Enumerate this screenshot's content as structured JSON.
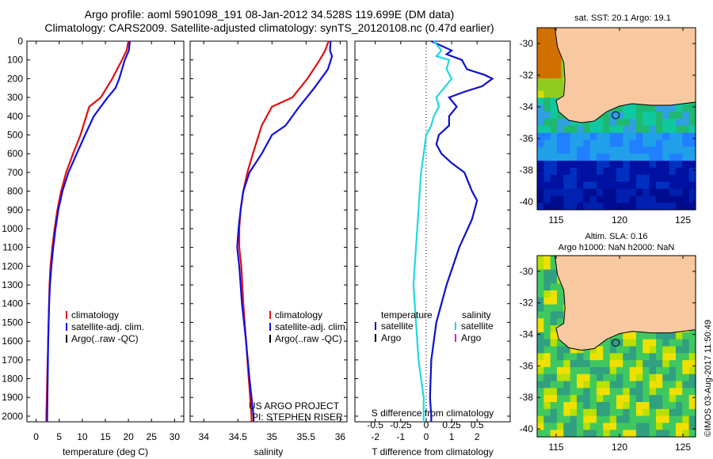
{
  "header": {
    "title1": "Argo profile: aoml 5901098_191 08-Jan-2012 34.528S 119.699E (DM data)",
    "title2": "Climatology: CARS2009. Satellite-adjusted climatology: synTS_20120108.nc (0.47d earlier)"
  },
  "chart_data": [
    {
      "type": "line",
      "id": "temperature",
      "xlabel": "temperature (deg C)",
      "xlim": [
        -2,
        32
      ],
      "xticks": [
        0,
        5,
        10,
        15,
        20,
        25,
        30
      ],
      "ylim": [
        0,
        2030
      ],
      "yticks": [
        0,
        100,
        200,
        300,
        400,
        500,
        600,
        700,
        800,
        900,
        1000,
        1100,
        1200,
        1300,
        1400,
        1500,
        1600,
        1700,
        1800,
        1900,
        2000
      ],
      "legend": [
        "climatology",
        "satellite-adj. clim.",
        "Argo(..raw -QC)"
      ],
      "series": [
        {
          "name": "climatology",
          "color": "#e01010",
          "points": [
            [
              20.0,
              0
            ],
            [
              19.6,
              50
            ],
            [
              18.6,
              100
            ],
            [
              16.5,
              200
            ],
            [
              14.0,
              300
            ],
            [
              11.5,
              350
            ],
            [
              9.6,
              500
            ],
            [
              8.0,
              600
            ],
            [
              6.5,
              700
            ],
            [
              5.4,
              800
            ],
            [
              4.6,
              900
            ],
            [
              4.0,
              1000
            ],
            [
              3.5,
              1100
            ],
            [
              3.1,
              1200
            ],
            [
              2.9,
              1300
            ],
            [
              2.8,
              1400
            ],
            [
              2.6,
              1600
            ],
            [
              2.4,
              1800
            ],
            [
              2.2,
              2000
            ],
            [
              2.2,
              2030
            ]
          ]
        },
        {
          "name": "satellite-adj. clim.",
          "color": "#1010e0",
          "points": [
            [
              20.3,
              0
            ],
            [
              20.1,
              50
            ],
            [
              19.2,
              100
            ],
            [
              18.0,
              200
            ],
            [
              17.2,
              250
            ],
            [
              15.5,
              300
            ],
            [
              12.5,
              400
            ],
            [
              10.6,
              500
            ],
            [
              8.8,
              600
            ],
            [
              7.0,
              700
            ],
            [
              5.7,
              800
            ],
            [
              4.8,
              900
            ],
            [
              4.2,
              1000
            ],
            [
              3.7,
              1100
            ],
            [
              3.3,
              1200
            ],
            [
              3.0,
              1300
            ],
            [
              2.8,
              1400
            ],
            [
              2.6,
              1600
            ],
            [
              2.5,
              1800
            ],
            [
              2.4,
              2000
            ],
            [
              2.4,
              2030
            ]
          ]
        }
      ]
    },
    {
      "type": "line",
      "id": "salinity",
      "xlabel": "salinity",
      "xlim": [
        33.8,
        36.1
      ],
      "xticks": [
        34,
        34.5,
        35,
        35.5,
        36
      ],
      "ylim": [
        0,
        2030
      ],
      "legend": [
        "climatology",
        "satellite-adj. clim.",
        "Argo(..raw -QC)"
      ],
      "annotations": [
        "US ARGO PROJECT",
        "PI: STEPHEN RISER"
      ],
      "series": [
        {
          "name": "climatology",
          "color": "#e01010",
          "points": [
            [
              35.83,
              0
            ],
            [
              35.78,
              50
            ],
            [
              35.7,
              100
            ],
            [
              35.52,
              200
            ],
            [
              35.3,
              300
            ],
            [
              35.0,
              350
            ],
            [
              34.85,
              450
            ],
            [
              34.72,
              600
            ],
            [
              34.64,
              700
            ],
            [
              34.58,
              800
            ],
            [
              34.54,
              900
            ],
            [
              34.52,
              1000
            ],
            [
              34.52,
              1100
            ],
            [
              34.55,
              1200
            ],
            [
              34.58,
              1400
            ],
            [
              34.62,
              1600
            ],
            [
              34.66,
              1800
            ],
            [
              34.7,
              2000
            ],
            [
              34.7,
              2030
            ]
          ]
        },
        {
          "name": "satellite-adj. clim.",
          "color": "#1010e0",
          "points": [
            [
              35.86,
              0
            ],
            [
              35.85,
              50
            ],
            [
              35.88,
              80
            ],
            [
              35.82,
              150
            ],
            [
              35.62,
              250
            ],
            [
              35.4,
              350
            ],
            [
              35.2,
              450
            ],
            [
              35.0,
              500
            ],
            [
              34.85,
              600
            ],
            [
              34.67,
              700
            ],
            [
              34.58,
              800
            ],
            [
              34.54,
              900
            ],
            [
              34.51,
              1000
            ],
            [
              34.49,
              1100
            ],
            [
              34.52,
              1200
            ],
            [
              34.56,
              1400
            ],
            [
              34.62,
              1600
            ],
            [
              34.67,
              1800
            ],
            [
              34.73,
              2000
            ],
            [
              34.73,
              2030
            ]
          ]
        }
      ]
    },
    {
      "type": "line",
      "id": "differences",
      "xlabel_top": "S difference from climatology",
      "xlabel": "T difference from climatology",
      "xlim": [
        -2.8,
        3.3
      ],
      "xticks_bottom": [
        -2,
        -1,
        0,
        1,
        2
      ],
      "xticks_top": [
        -0.5,
        -0.25,
        0,
        0.25,
        0.5
      ],
      "ylim": [
        0,
        2030
      ],
      "legend": {
        "temperature": [
          "satellite",
          "Argo"
        ],
        "salinity": [
          "satellite",
          "Argo"
        ]
      },
      "legend_headers": [
        "temperature",
        "salinity"
      ],
      "series": [
        {
          "name": "satellite",
          "quantity": "temperature",
          "color": "#1010c8",
          "points": [
            [
              0.2,
              0
            ],
            [
              1.0,
              50
            ],
            [
              0.8,
              70
            ],
            [
              1.4,
              100
            ],
            [
              1.6,
              150
            ],
            [
              2.3,
              180
            ],
            [
              2.6,
              200
            ],
            [
              2.2,
              240
            ],
            [
              1.5,
              270
            ],
            [
              0.9,
              300
            ],
            [
              1.2,
              350
            ],
            [
              0.9,
              400
            ],
            [
              0.9,
              450
            ],
            [
              0.5,
              500
            ],
            [
              0.4,
              550
            ],
            [
              0.6,
              600
            ],
            [
              1.0,
              650
            ],
            [
              1.5,
              700
            ],
            [
              1.8,
              800
            ],
            [
              2.0,
              850
            ],
            [
              1.8,
              950
            ],
            [
              1.3,
              1100
            ],
            [
              0.8,
              1300
            ],
            [
              0.4,
              1500
            ],
            [
              0.2,
              1700
            ],
            [
              0.15,
              1900
            ],
            [
              0.2,
              2000
            ],
            [
              0.2,
              2030
            ]
          ]
        },
        {
          "name": "satellite",
          "quantity": "salinity",
          "color": "#20d8e0",
          "points": [
            [
              0.3,
              0
            ],
            [
              0.6,
              50
            ],
            [
              0.4,
              80
            ],
            [
              0.9,
              100
            ],
            [
              0.8,
              150
            ],
            [
              1.0,
              200
            ],
            [
              0.7,
              250
            ],
            [
              0.4,
              300
            ],
            [
              0.5,
              350
            ],
            [
              0.3,
              400
            ],
            [
              0.2,
              450
            ],
            [
              0.0,
              500
            ],
            [
              -0.1,
              600
            ],
            [
              -0.2,
              700
            ],
            [
              -0.3,
              900
            ],
            [
              -0.4,
              1100
            ],
            [
              -0.5,
              1300
            ],
            [
              -0.4,
              1500
            ],
            [
              -0.3,
              1700
            ],
            [
              -0.1,
              1900
            ],
            [
              -0.1,
              2030
            ]
          ]
        }
      ]
    },
    {
      "type": "heatmap",
      "id": "sst-map",
      "title": "sat. SST: 20.1 Argo: 19.1",
      "xticks": [
        115,
        120,
        125
      ],
      "yticks": [
        -30,
        -32,
        -34,
        -36,
        -38,
        -40
      ],
      "xlim": [
        113.5,
        126
      ],
      "ylim": [
        -40.5,
        -29
      ],
      "marker": [
        119.7,
        -34.53
      ]
    },
    {
      "type": "heatmap",
      "id": "sla-map",
      "title_line1": "Altim. SLA: 0.16",
      "title_line2": "Argo h1000: NaN h2000: NaN",
      "xticks": [
        115,
        120,
        125
      ],
      "yticks": [
        -30,
        -32,
        -34,
        -36,
        -38,
        -40
      ],
      "xlim": [
        113.5,
        126
      ],
      "ylim": [
        -40.5,
        -29
      ],
      "marker": [
        119.7,
        -34.53
      ]
    }
  ],
  "footer": {
    "stamp": "©IMOS 03-Aug-2017 11:50:49"
  }
}
